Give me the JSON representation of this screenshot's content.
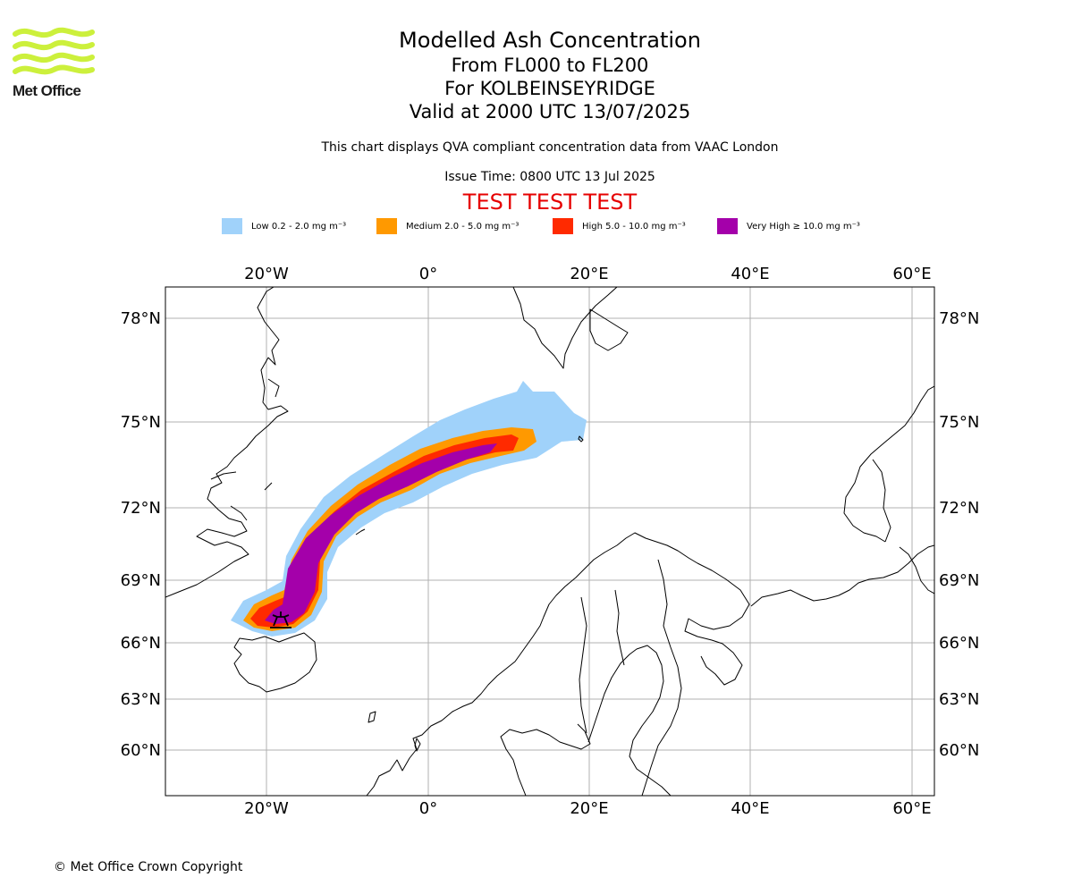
{
  "header": {
    "title": "Modelled Ash Concentration",
    "levels": "From FL000 to FL200",
    "volcano": "For KOLBEINSEYRIDGE",
    "valid": "Valid at 2000 UTC 13/07/2025",
    "note": "This chart displays QVA compliant concentration data from VAAC London",
    "issue": "Issue Time: 0800 UTC 13 Jul 2025",
    "test_banner": "TEST TEST TEST"
  },
  "logo": {
    "name": "Met Office",
    "color": "#ccf03c"
  },
  "legend": [
    {
      "label": "Low 0.2 - 2.0 mg m⁻³",
      "color": "#a0d2fa"
    },
    {
      "label": "Medium 2.0 - 5.0 mg m⁻³",
      "color": "#ff9900"
    },
    {
      "label": "High 5.0 - 10.0 mg m⁻³",
      "color": "#ff2a00"
    },
    {
      "label": "Very High  ≥  10.0 mg m⁻³",
      "color": "#a400aa"
    }
  ],
  "map": {
    "lon_labels": [
      "20°W",
      "0°",
      "20°E",
      "40°E",
      "60°E"
    ],
    "lat_labels": [
      "78°N",
      "75°N",
      "72°N",
      "69°N",
      "66°N",
      "63°N",
      "60°N"
    ],
    "gridlines": true,
    "volcano_icon": "volcano-symbol"
  },
  "footer": {
    "copyright": "© Met Office Crown Copyright"
  }
}
